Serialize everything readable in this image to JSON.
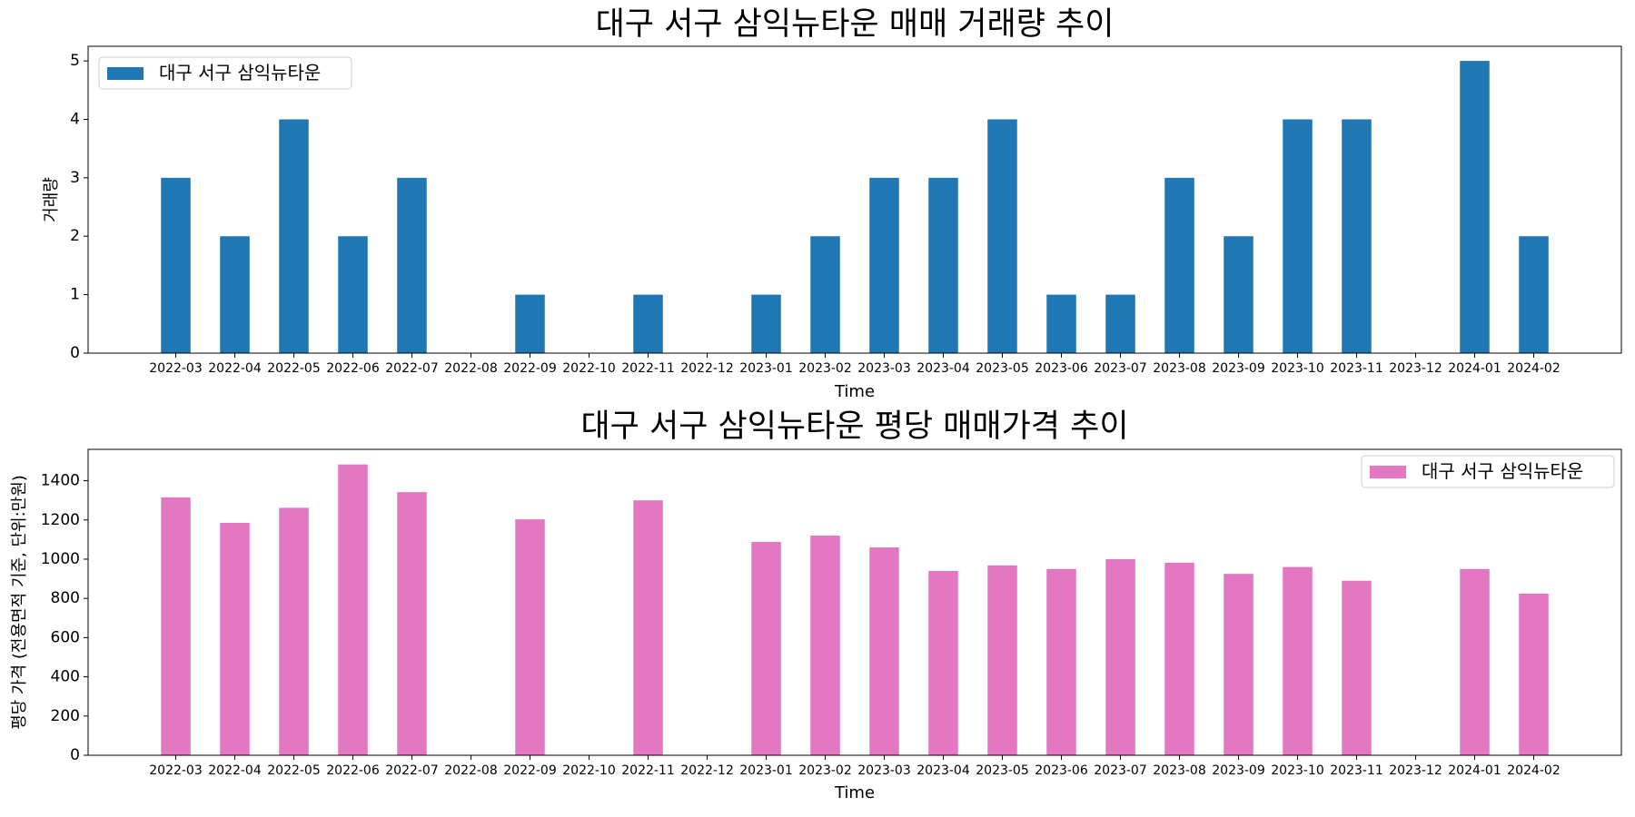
{
  "chart_data": [
    {
      "type": "bar",
      "title": "대구 서구 삼익뉴타운 매매 거래량 추이",
      "xlabel": "Time",
      "ylabel": "거래량",
      "categories": [
        "2022-03",
        "2022-04",
        "2022-05",
        "2022-06",
        "2022-07",
        "2022-08",
        "2022-09",
        "2022-10",
        "2022-11",
        "2022-12",
        "2023-01",
        "2023-02",
        "2023-03",
        "2023-04",
        "2023-05",
        "2023-06",
        "2023-07",
        "2023-08",
        "2023-09",
        "2023-10",
        "2023-11",
        "2023-12",
        "2024-01",
        "2024-02"
      ],
      "series": [
        {
          "name": "대구 서구 삼익뉴타운",
          "color": "#1f77b4",
          "values": [
            3,
            2,
            4,
            2,
            3,
            0,
            1,
            0,
            1,
            0,
            1,
            2,
            3,
            3,
            4,
            1,
            1,
            3,
            2,
            4,
            4,
            0,
            5,
            2
          ]
        }
      ],
      "ylim": [
        0,
        5.25
      ],
      "yticks": [
        "0",
        "1",
        "2",
        "3",
        "4",
        "5"
      ],
      "legend_position": "top-left",
      "grid": false
    },
    {
      "type": "bar",
      "title": "대구 서구 삼익뉴타운 평당 매매가격 추이",
      "xlabel": "Time",
      "ylabel": "평당 가격 (전용면적 기준, 단위:만원)",
      "categories": [
        "2022-03",
        "2022-04",
        "2022-05",
        "2022-06",
        "2022-07",
        "2022-08",
        "2022-09",
        "2022-10",
        "2022-11",
        "2022-12",
        "2023-01",
        "2023-02",
        "2023-03",
        "2023-04",
        "2023-05",
        "2023-06",
        "2023-07",
        "2023-08",
        "2023-09",
        "2023-10",
        "2023-11",
        "2023-12",
        "2024-01",
        "2024-02"
      ],
      "series": [
        {
          "name": "대구 서구 삼익뉴타운",
          "color": "#e377c2",
          "values": [
            1315,
            1185,
            1262,
            1483,
            1342,
            0,
            1203,
            0,
            1300,
            0,
            1088,
            1120,
            1060,
            940,
            968,
            950,
            1000,
            982,
            925,
            960,
            890,
            0,
            950,
            824
          ]
        }
      ],
      "ylim": [
        0,
        1560
      ],
      "yticks": [
        "0",
        "200",
        "400",
        "600",
        "800",
        "1000",
        "1200",
        "1400"
      ],
      "legend_position": "top-right",
      "grid": false
    }
  ]
}
